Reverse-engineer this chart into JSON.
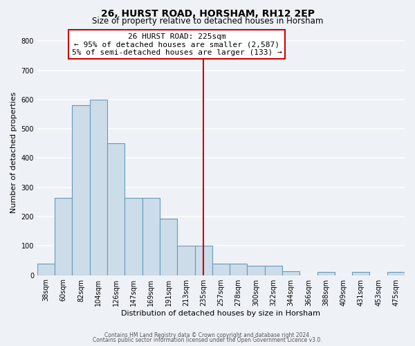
{
  "title": "26, HURST ROAD, HORSHAM, RH12 2EP",
  "subtitle": "Size of property relative to detached houses in Horsham",
  "xlabel": "Distribution of detached houses by size in Horsham",
  "ylabel": "Number of detached properties",
  "bar_labels": [
    "38sqm",
    "60sqm",
    "82sqm",
    "104sqm",
    "126sqm",
    "147sqm",
    "169sqm",
    "191sqm",
    "213sqm",
    "235sqm",
    "257sqm",
    "278sqm",
    "300sqm",
    "322sqm",
    "344sqm",
    "366sqm",
    "388sqm",
    "409sqm",
    "431sqm",
    "453sqm",
    "475sqm"
  ],
  "bar_values": [
    40,
    263,
    580,
    600,
    450,
    263,
    263,
    193,
    100,
    100,
    40,
    40,
    32,
    32,
    13,
    0,
    10,
    0,
    10,
    0,
    10
  ],
  "bar_color": "#ccdce8",
  "bar_edge_color": "#6699bb",
  "vline_x": 9.0,
  "vline_color": "#cc0000",
  "annotation_title": "26 HURST ROAD: 225sqm",
  "annotation_line1": "← 95% of detached houses are smaller (2,587)",
  "annotation_line2": "5% of semi-detached houses are larger (133) →",
  "annotation_box_color": "#cc0000",
  "ylim": [
    0,
    840
  ],
  "yticks": [
    0,
    100,
    200,
    300,
    400,
    500,
    600,
    700,
    800
  ],
  "footer1": "Contains HM Land Registry data © Crown copyright and database right 2024.",
  "footer2": "Contains public sector information licensed under the Open Government Licence v3.0.",
  "bg_color": "#eef2f7",
  "grid_color": "#ffffff",
  "title_fontsize": 10,
  "subtitle_fontsize": 8.5,
  "tick_fontsize": 7,
  "axis_label_fontsize": 8,
  "annotation_fontsize": 8,
  "ylabel_fontsize": 8
}
